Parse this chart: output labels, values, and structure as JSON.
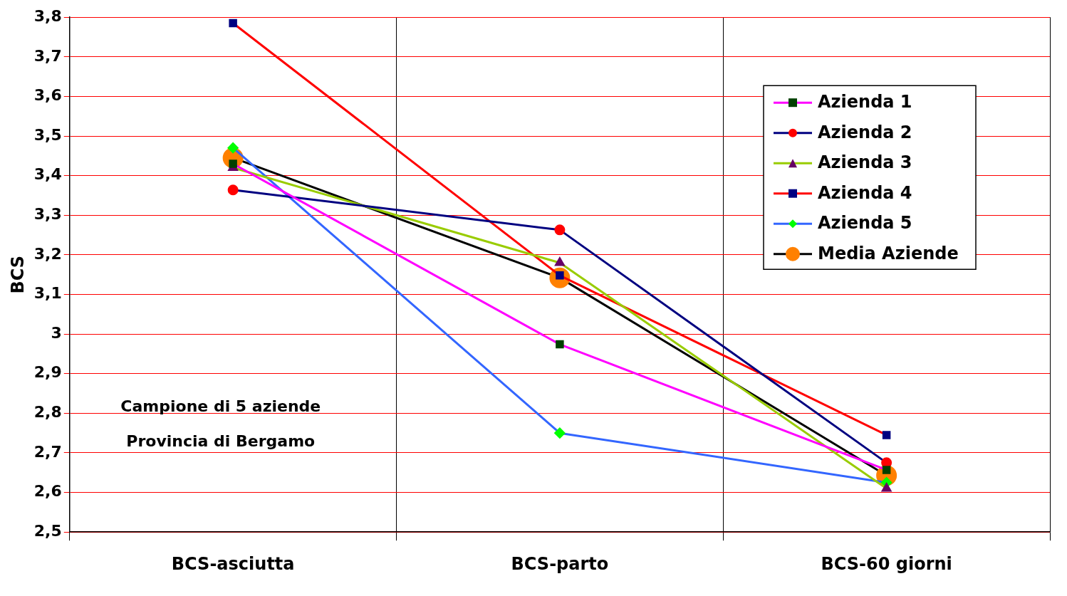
{
  "chart_data": {
    "type": "line",
    "ylabel": "BCS",
    "categories": [
      "BCS-asciutta",
      "BCS-parto",
      "BCS-60 giorni"
    ],
    "series": [
      {
        "name": "Azienda 1",
        "color": "#ff00ff",
        "marker": "square",
        "values": [
          3.43,
          2.974,
          2.657
        ]
      },
      {
        "name": "Azienda 2",
        "color": "#000080",
        "marker": "circle",
        "values": [
          3.364,
          3.263,
          2.675
        ]
      },
      {
        "name": "Azienda 3",
        "color": "#99cc00",
        "marker": "triangle",
        "values": [
          3.42,
          3.18,
          2.61
        ]
      },
      {
        "name": "Azienda 4",
        "color": "#ff0000",
        "marker": "square",
        "values": [
          3.785,
          3.148,
          2.745
        ]
      },
      {
        "name": "Azienda 5",
        "color": "#3366ff",
        "marker": "diamond",
        "values": [
          3.47,
          2.75,
          2.625
        ]
      },
      {
        "name": "Media Aziende",
        "color": "#000000",
        "marker": "circle",
        "values": [
          3.445,
          3.142,
          2.643
        ]
      }
    ],
    "ylim": [
      2.5,
      3.8
    ],
    "yticks": [
      {
        "value": 2.5,
        "label": "2,5"
      },
      {
        "value": 2.6,
        "label": "2,6"
      },
      {
        "value": 2.7,
        "label": "2,7"
      },
      {
        "value": 2.8,
        "label": "2,8"
      },
      {
        "value": 2.9,
        "label": "2,9"
      },
      3,
      {
        "value": 3.1,
        "label": "3,1"
      },
      {
        "value": 3.2,
        "label": "3,2"
      },
      {
        "value": 3.3,
        "label": "3,3"
      },
      {
        "value": 3.4,
        "label": "3,4"
      },
      {
        "value": 3.5,
        "label": "3,5"
      },
      {
        "value": 3.6,
        "label": "3,6"
      },
      {
        "value": 3.7,
        "label": "3,7"
      },
      {
        "value": 3.8,
        "label": "3,8"
      }
    ],
    "grid": true,
    "legend": "top right",
    "annotations": [
      "Campione di 5 aziende",
      "Provincia di Bergamo"
    ]
  }
}
